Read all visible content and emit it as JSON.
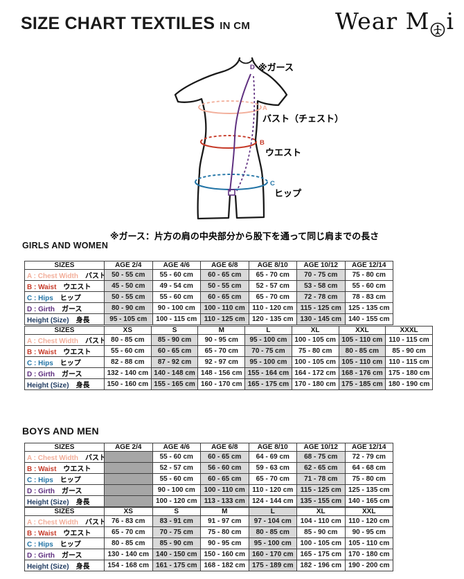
{
  "colors": {
    "chest": "#F2AE9A",
    "waist": "#C63A28",
    "hips": "#2274A6",
    "girth": "#5F3080",
    "height": "#1F3A60",
    "shaded_cell": "#D9D9D9",
    "empty_cell": "#A6A6A6",
    "outline": "#1A1A1A"
  },
  "header": {
    "title": "SIZE CHART TEXTILES",
    "unit": "IN CM",
    "logo_part1": "Wear M",
    "logo_part2": "i"
  },
  "diagram": {
    "girth_letter": "D",
    "girth_label": "※ガース",
    "chest_letter": "A",
    "chest_label": "バスト（チェスト）",
    "waist_letter": "B",
    "waist_label": "ウエスト",
    "hips_letter": "C",
    "hips_label": "ヒップ",
    "note": "※ガース：片方の肩の中央部分から股下を通って同じ肩までの長さ"
  },
  "sections": {
    "girls": {
      "heading": "GIRLS AND WOMEN"
    },
    "boys": {
      "heading": "BOYS AND MEN"
    }
  },
  "tables": {
    "girls_age": {
      "corner": "SIZES",
      "columns": [
        "AGE 2/4",
        "AGE 4/6",
        "AGE 6/8",
        "AGE 8/10",
        "AGE 10/12",
        "AGE 12/14"
      ],
      "shaded": [
        0,
        2,
        4
      ],
      "rows": [
        {
          "en": "A : Chest Width",
          "jp": "バスト",
          "color": "chest",
          "values": [
            "50 - 55 cm",
            "55 - 60 cm",
            "60 - 65 cm",
            "65 - 70 cm",
            "70 - 75 cm",
            "75 - 80 cm"
          ]
        },
        {
          "en": "B : Waist",
          "jp": "ウエスト",
          "color": "waist",
          "values": [
            "45 - 50 cm",
            "49 - 54 cm",
            "50 - 55 cm",
            "52 - 57 cm",
            "53 - 58 cm",
            "55 - 60 cm"
          ]
        },
        {
          "en": "C : Hips",
          "jp": "ヒップ",
          "color": "hips",
          "values": [
            "50 - 55 cm",
            "55 - 60 cm",
            "60 - 65 cm",
            "65 - 70 cm",
            "72 - 78 cm",
            "78 - 83 cm"
          ]
        },
        {
          "en": "D : Girth",
          "jp": "ガース",
          "color": "girth",
          "values": [
            "80 - 90 cm",
            "90 - 100 cm",
            "100 - 110 cm",
            "110 - 120 cm",
            "115 - 125 cm",
            "125 - 135 cm"
          ]
        },
        {
          "en": "Height (Size)",
          "jp": "身長",
          "color": "height",
          "values": [
            "95 - 105 cm",
            "100 - 115 cm",
            "110 - 125 cm",
            "120 - 135 cm",
            "130 - 145 cm",
            "140 - 155 cm"
          ]
        }
      ]
    },
    "girls_size": {
      "corner": "SIZES",
      "columns": [
        "XS",
        "S",
        "M",
        "L",
        "XL",
        "XXL",
        "XXXL"
      ],
      "shaded": [
        1,
        3,
        5
      ],
      "rows": [
        {
          "en": "A : Chest Width",
          "jp": "バスト",
          "color": "chest",
          "values": [
            "80 - 85 cm",
            "85 - 90 cm",
            "90 - 95 cm",
            "95 - 100 cm",
            "100 - 105 cm",
            "105 - 110 cm",
            "110 - 115 cm"
          ]
        },
        {
          "en": "B : Waist",
          "jp": "ウエスト",
          "color": "waist",
          "values": [
            "55 - 60 cm",
            "60 - 65 cm",
            "65 - 70 cm",
            "70 - 75 cm",
            "75 - 80 cm",
            "80 - 85 cm",
            "85 - 90 cm"
          ]
        },
        {
          "en": "C : Hips",
          "jp": "ヒップ",
          "color": "hips",
          "values": [
            "82 - 88 cm",
            "87 - 92 cm",
            "92 - 97 cm",
            "95 - 100 cm",
            "100 - 105 cm",
            "105 - 110 cm",
            "110 - 115 cm"
          ]
        },
        {
          "en": "D : Girth",
          "jp": "ガース",
          "color": "girth",
          "values": [
            "132 - 140 cm",
            "140 - 148 cm",
            "148 - 156 cm",
            "155 - 164 cm",
            "164 - 172 cm",
            "168 - 176 cm",
            "175 - 180 cm"
          ]
        },
        {
          "en": "Height (Size)",
          "jp": "身長",
          "color": "height",
          "values": [
            "150 - 160 cm",
            "155 - 165 cm",
            "160 - 170 cm",
            "165 - 175 cm",
            "170 - 180 cm",
            "175 - 185 cm",
            "180 - 190 cm"
          ]
        }
      ]
    },
    "boys_age": {
      "corner": "SIZES",
      "columns": [
        "AGE 2/4",
        "AGE 4/6",
        "AGE 6/8",
        "AGE 8/10",
        "AGE 10/12",
        "AGE 12/14"
      ],
      "shaded": [
        2,
        4
      ],
      "dark": [
        0
      ],
      "rows": [
        {
          "en": "A : Chest Width",
          "jp": "バスト",
          "color": "chest",
          "values": [
            "",
            "55 - 60 cm",
            "60 - 65 cm",
            "64 - 69 cm",
            "68 - 75 cm",
            "72 - 79 cm"
          ]
        },
        {
          "en": "B : Waist",
          "jp": "ウエスト",
          "color": "waist",
          "values": [
            "",
            "52 - 57 cm",
            "56 - 60 cm",
            "59 - 63 cm",
            "62 - 65 cm",
            "64 - 68 cm"
          ]
        },
        {
          "en": "C : Hips",
          "jp": "ヒップ",
          "color": "hips",
          "values": [
            "",
            "55 - 60 cm",
            "60 - 65 cm",
            "65 - 70 cm",
            "71 - 78 cm",
            "75 - 80 cm"
          ]
        },
        {
          "en": "D : Girth",
          "jp": "ガース",
          "color": "girth",
          "values": [
            "",
            "90 - 100 cm",
            "100 - 110 cm",
            "110 - 120 cm",
            "115 - 125 cm",
            "125 - 135 cm"
          ]
        },
        {
          "en": "Height (Size)",
          "jp": "身長",
          "color": "height",
          "values": [
            "",
            "100 - 120 cm",
            "113 - 133 cm",
            "124 - 144 cm",
            "135 - 155 cm",
            "140 - 165 cm"
          ]
        }
      ]
    },
    "boys_size": {
      "corner": "SIZES",
      "columns": [
        "XS",
        "S",
        "M",
        "L",
        "XL",
        "XXL"
      ],
      "shaded": [
        1,
        3
      ],
      "headerShaded": [
        3
      ],
      "rows": [
        {
          "en": "A : Chest Width",
          "jp": "バスト",
          "color": "chest",
          "values": [
            "76 - 83 cm",
            "83 - 91 cm",
            "91 - 97 cm",
            "97 - 104 cm",
            "104 - 110 cm",
            "110 - 120 cm"
          ]
        },
        {
          "en": "B : Waist",
          "jp": "ウエスト",
          "color": "waist",
          "values": [
            "65 - 70 cm",
            "70 - 75 cm",
            "75 - 80 cm",
            "80 - 85 cm",
            "85 - 90 cm",
            "90 - 95 cm"
          ]
        },
        {
          "en": "C : Hips",
          "jp": "ヒップ",
          "color": "hips",
          "values": [
            "80 - 85 cm",
            "85 - 90 cm",
            "90 - 95 cm",
            "95 - 100 cm",
            "100 - 105 cm",
            "105 - 110 cm"
          ]
        },
        {
          "en": "D : Girth",
          "jp": "ガース",
          "color": "girth",
          "values": [
            "130 - 140 cm",
            "140 - 150 cm",
            "150 - 160 cm",
            "160 - 170 cm",
            "165 - 175 cm",
            "170 - 180 cm"
          ]
        },
        {
          "en": "Height (Size)",
          "jp": "身長",
          "color": "height",
          "values": [
            "154 - 168 cm",
            "161 - 175 cm",
            "168 - 182 cm",
            "175 - 189 cm",
            "182 - 196 cm",
            "190 - 200 cm"
          ]
        }
      ]
    }
  }
}
